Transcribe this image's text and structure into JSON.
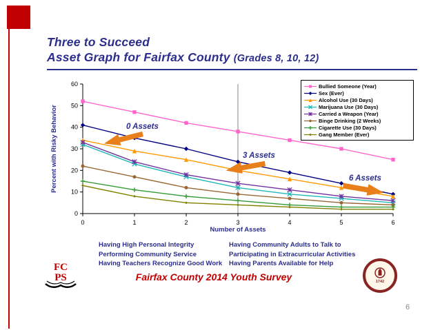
{
  "slide": {
    "title_line1": "Three to Succeed",
    "title_line2_main": "Asset Graph for Fairfax County ",
    "title_line2_grades": "(Grades 8, 10, 12)",
    "footer": "Fairfax County 2014 Youth Survey",
    "page_number": "6",
    "navy": "#2B2E8C",
    "red": "#C00000",
    "arrow_orange": "#E87F1A"
  },
  "chart_data": {
    "type": "line",
    "title": "",
    "xlabel": "Number of Assets",
    "ylabel": "Percent with Risky Behavior",
    "x": [
      0,
      1,
      2,
      3,
      4,
      5,
      6
    ],
    "ylim": [
      0,
      60
    ],
    "ytick_step": 10,
    "grid": false,
    "ref_line_x": 3,
    "legend_position": "top-right",
    "series": [
      {
        "name": "Bullied Someone (Year)",
        "color": "#FF66CC",
        "marker": "square",
        "values": [
          52,
          47,
          42,
          38,
          34,
          30,
          25
        ]
      },
      {
        "name": "Sex (Ever)",
        "color": "#000080",
        "marker": "diamond",
        "values": [
          41,
          35,
          30,
          24,
          19,
          14,
          9
        ]
      },
      {
        "name": "Alcohol Use (30 Days)",
        "color": "#FF9900",
        "marker": "triangle",
        "values": [
          34,
          29,
          25,
          20,
          16,
          12,
          8
        ]
      },
      {
        "name": "Marijuana Use (30 Days)",
        "color": "#1FB8B8",
        "marker": "x",
        "values": [
          32,
          23,
          17,
          12,
          9,
          7,
          5
        ]
      },
      {
        "name": "Carried a Weapon (Year)",
        "color": "#7030A0",
        "marker": "star",
        "values": [
          33,
          24,
          18,
          14,
          11,
          8,
          6
        ]
      },
      {
        "name": "Binge Drinking (2 Weeks)",
        "color": "#996633",
        "marker": "circle",
        "values": [
          22,
          17,
          12,
          9,
          7,
          5,
          4
        ]
      },
      {
        "name": "Cigarette Use (30 Days)",
        "color": "#339933",
        "marker": "plus",
        "values": [
          15,
          11,
          8,
          6,
          4,
          3,
          3
        ]
      },
      {
        "name": "Gang Member (Ever)",
        "color": "#808000",
        "marker": "small-diamond",
        "values": [
          13,
          8,
          5,
          4,
          3,
          2,
          2
        ]
      }
    ]
  },
  "annotations": [
    {
      "label": "0 Assets"
    },
    {
      "label": "3 Assets"
    },
    {
      "label": "6 Assets"
    }
  ],
  "asset_lists": {
    "left": [
      "Having High Personal Integrity",
      "Performing Community Service",
      "Having Teachers Recognize Good Work"
    ],
    "right": [
      "Having Community Adults to Talk to",
      "Participating in Extracurricular Activities",
      "Having Parents Available for Help"
    ]
  },
  "logos": {
    "fcps_top": "FC",
    "fcps_bottom": "PS",
    "seal_year": "1742"
  }
}
